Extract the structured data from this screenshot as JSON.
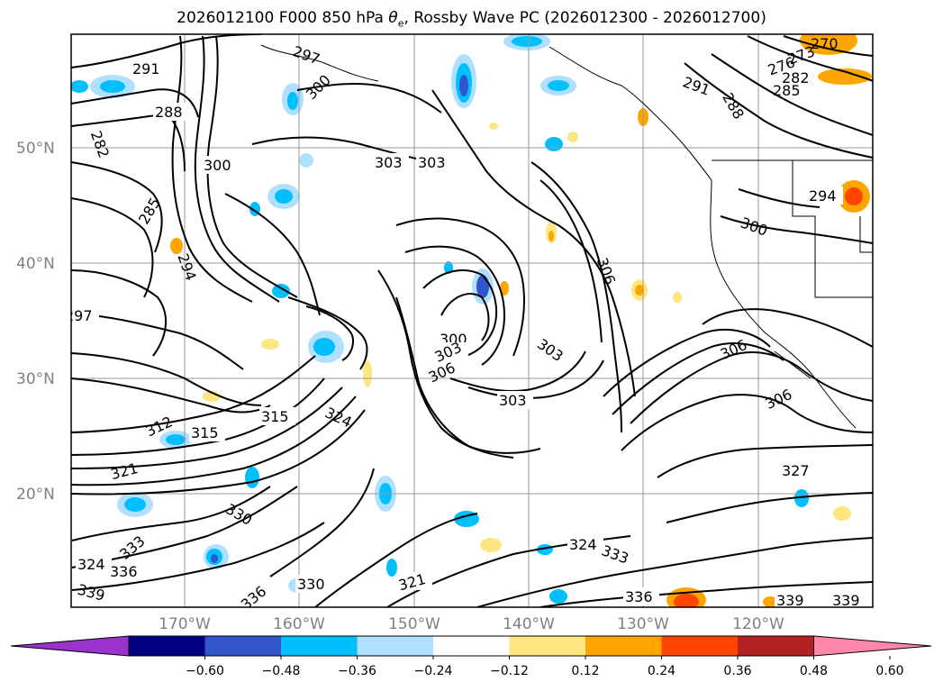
{
  "title": {
    "main": "2026012100 F000 850 hPa ",
    "theta_symbol": "θ",
    "theta_sub": "e",
    "rest": ", Rossby Wave PC (2026012300 - 2026012700)"
  },
  "map": {
    "lat_labels": [
      "50°N",
      "40°N",
      "30°N",
      "20°N"
    ],
    "lon_labels": [
      "170°W",
      "160°W",
      "150°W",
      "140°W",
      "130°W",
      "120°W"
    ],
    "contour_labels": [
      "291",
      "288",
      "300",
      "303",
      "303",
      "282",
      "285",
      "294",
      "297",
      "297",
      "300",
      "300",
      "303",
      "306",
      "303",
      "303",
      "306",
      "306",
      "315",
      "312",
      "315",
      "324",
      "321",
      "330",
      "333",
      "336",
      "324",
      "336",
      "339",
      "330",
      "321",
      "324",
      "333",
      "336",
      "339",
      "339",
      "327",
      "306",
      "294",
      "285",
      "282",
      "276",
      "273",
      "270",
      "291",
      "288",
      "300"
    ]
  },
  "colorbar": {
    "tick_labels": [
      "−0.60",
      "−0.48",
      "−0.36",
      "−0.24",
      "−0.12",
      "0.12",
      "0.24",
      "0.36",
      "0.48",
      "0.60"
    ],
    "colors": [
      "#9933cc",
      "#000080",
      "#3355cc",
      "#00bfff",
      "#b0e0ff",
      "#ffffff",
      "#ffe680",
      "#ffa500",
      "#ff4500",
      "#b22222",
      "#ff88aa"
    ]
  }
}
